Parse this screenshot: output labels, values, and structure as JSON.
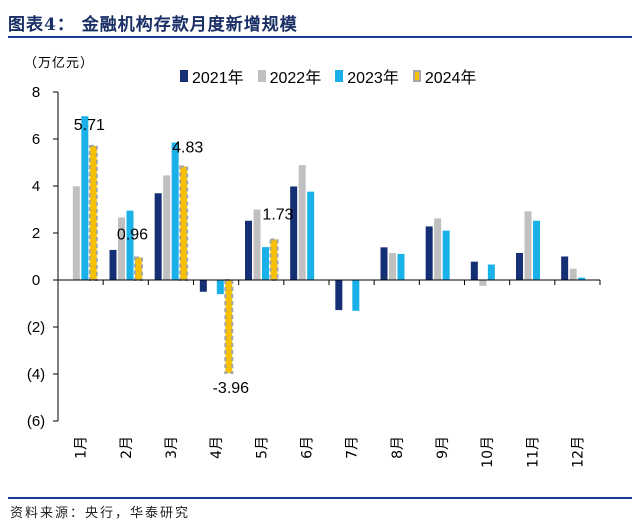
{
  "header": {
    "title": "图表4：  金融机构存款月度新增规模"
  },
  "footer": {
    "source": "资料来源：央行，华泰研究"
  },
  "colors": {
    "s2021": "#142f73",
    "s2022": "#c0c0c0",
    "s2023": "#1ab0e8",
    "s2024": "#f7c000",
    "s2024_border": "#a6a6a6",
    "axis": "#000000"
  },
  "chart_data": {
    "type": "bar",
    "unit_label": "（万亿元）",
    "categories": [
      "1月",
      "2月",
      "3月",
      "4月",
      "5月",
      "6月",
      "7月",
      "8月",
      "9月",
      "10月",
      "11月",
      "12月"
    ],
    "series": [
      {
        "name": "2021年",
        "values": [
          0,
          1.28,
          3.69,
          -0.5,
          2.52,
          3.98,
          -1.28,
          1.39,
          2.28,
          0.78,
          1.15,
          1.0
        ]
      },
      {
        "name": "2022年",
        "values": [
          3.99,
          2.66,
          4.45,
          0,
          3.0,
          4.89,
          0,
          1.15,
          2.62,
          -0.25,
          2.92,
          0.48
        ]
      },
      {
        "name": "2023年",
        "values": [
          6.97,
          2.95,
          5.85,
          -0.6,
          1.4,
          3.76,
          -1.31,
          1.11,
          2.1,
          0.66,
          2.52,
          0.1
        ]
      },
      {
        "name": "2024年",
        "values": [
          5.71,
          0.96,
          4.83,
          -3.96,
          1.73,
          null,
          null,
          null,
          null,
          null,
          null,
          null
        ]
      }
    ],
    "data_labels": [
      {
        "series": "2024年",
        "category": "1月",
        "text": "5.71"
      },
      {
        "series": "2024年",
        "category": "2月",
        "text": "0.96"
      },
      {
        "series": "2024年",
        "category": "3月",
        "text": "4.83"
      },
      {
        "series": "2024年",
        "category": "4月",
        "text": "-3.96"
      },
      {
        "series": "2024年",
        "category": "5月",
        "text": "1.73"
      }
    ],
    "ylim": [
      -6,
      8
    ],
    "yticks": [
      {
        "value": 8,
        "label": "8"
      },
      {
        "value": 6,
        "label": "6"
      },
      {
        "value": 4,
        "label": "4"
      },
      {
        "value": 2,
        "label": "2"
      },
      {
        "value": 0,
        "label": "0"
      },
      {
        "value": -2,
        "label": "(2)"
      },
      {
        "value": -4,
        "label": "(4)"
      },
      {
        "value": -6,
        "label": "(6)"
      }
    ],
    "grid": false,
    "legend_position": "top"
  }
}
